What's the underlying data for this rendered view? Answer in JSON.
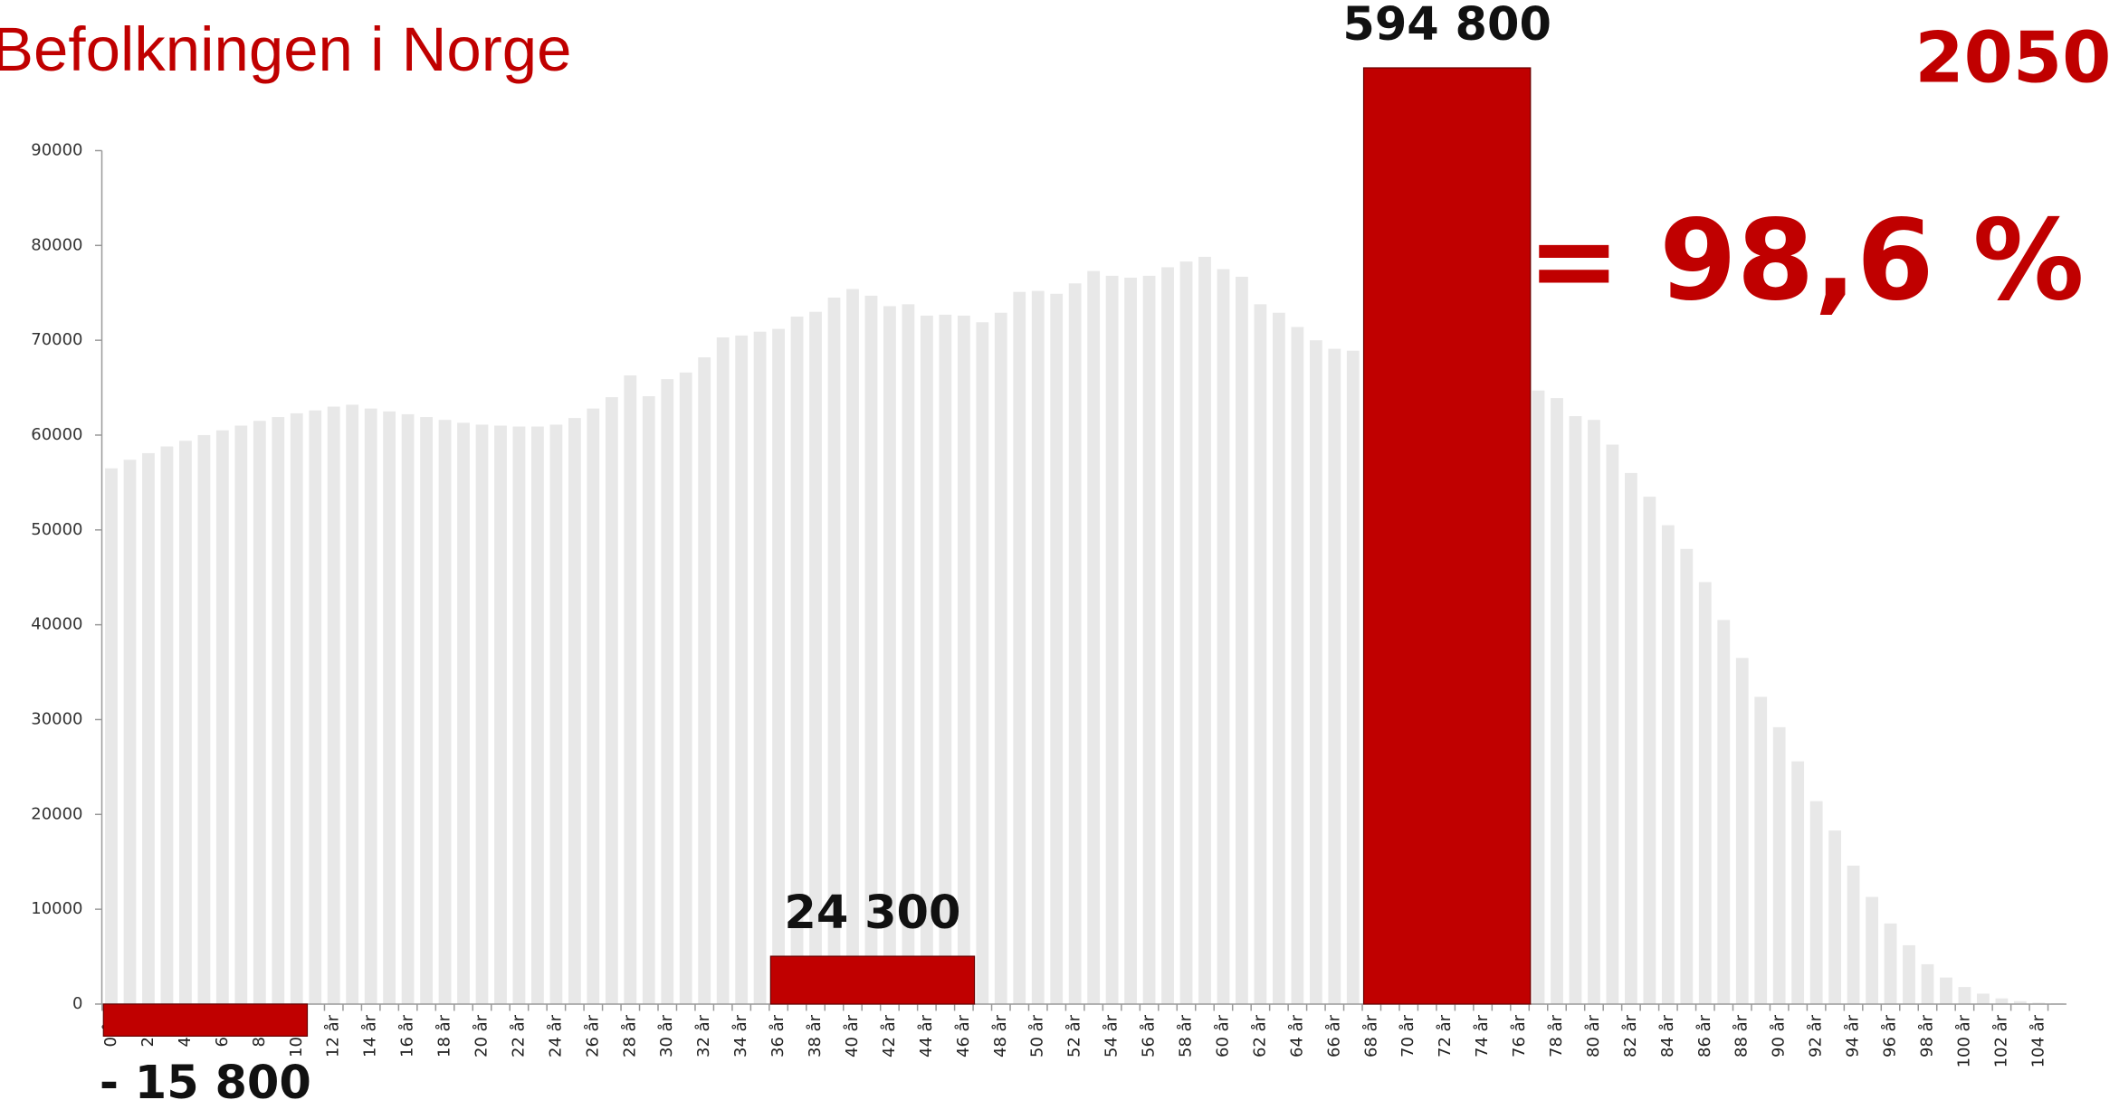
{
  "chart_data": {
    "type": "bar",
    "title": "Befolkningen i Norge",
    "year_label": "2050",
    "headline": "= 98,6 %",
    "color": "#e8e8e8",
    "categories": [
      "0 år",
      null,
      "2 år",
      null,
      "4 år",
      null,
      "6 år",
      null,
      "8 år",
      null,
      "10 år",
      null,
      "12 år",
      null,
      "14 år",
      null,
      "16 år",
      null,
      "18 år",
      null,
      "20 år",
      null,
      "22 år",
      null,
      "24 år",
      null,
      "26 år",
      null,
      "28 år",
      null,
      "30 år",
      null,
      "32 år",
      null,
      "34 år",
      null,
      "36 år",
      null,
      "38 år",
      null,
      "40 år",
      null,
      "42 år",
      null,
      "44 år",
      null,
      "46 år",
      null,
      "48 år",
      null,
      "50 år",
      null,
      "52 år",
      null,
      "54 år",
      null,
      "56 år",
      null,
      "58 år",
      null,
      "60 år",
      null,
      "62 år",
      null,
      "64 år",
      null,
      "66 år",
      null,
      "68 år",
      null,
      "70 år",
      null,
      "72 år",
      null,
      "74 år",
      null,
      "76 år",
      null,
      "78 år",
      null,
      "80 år",
      null,
      "82 år",
      null,
      "84 år",
      null,
      "86 år",
      null,
      "88 år",
      null,
      "90 år",
      null,
      "92 år",
      null,
      "94 år",
      null,
      "96 år",
      null,
      "98 år",
      null,
      "100 år",
      null,
      "102 år",
      null,
      "104 år",
      null
    ],
    "values": [
      56500,
      57400,
      58100,
      58800,
      59400,
      60000,
      60500,
      61000,
      61500,
      61900,
      62300,
      62600,
      63000,
      63200,
      62800,
      62500,
      62200,
      61900,
      61600,
      61300,
      61100,
      61000,
      60900,
      60900,
      61100,
      61800,
      62800,
      64000,
      66300,
      64100,
      65900,
      66600,
      68200,
      70300,
      70500,
      70900,
      71200,
      72500,
      73000,
      74500,
      75400,
      74700,
      73600,
      73800,
      72600,
      72700,
      72600,
      71900,
      72900,
      75100,
      75200,
      74900,
      76000,
      77300,
      76800,
      76600,
      76800,
      77700,
      78300,
      78800,
      77500,
      76700,
      73800,
      72900,
      71400,
      70000,
      69100,
      68900,
      68500,
      68000,
      67600,
      67200,
      66800,
      66400,
      66000,
      65600,
      65200,
      64700,
      63900,
      62000,
      61600,
      59000,
      56000,
      53500,
      50500,
      48000,
      44500,
      40500,
      36500,
      32400,
      29200,
      25600,
      21400,
      18300,
      14600,
      11300,
      8500,
      6200,
      4200,
      2800,
      1800,
      1100,
      600,
      300,
      150,
      80
    ],
    "ylim": [
      0,
      90000
    ],
    "yticks": [
      0,
      10000,
      20000,
      30000,
      40000,
      50000,
      60000,
      70000,
      80000,
      90000
    ],
    "highlights": {
      "color": "#c00000",
      "values": [
        -15800,
        24300,
        594800
      ],
      "value_labels": [
        "- 15 800",
        "24 300",
        "594 800"
      ],
      "from": [
        "0 år",
        "36 år",
        "68 år"
      ],
      "to": [
        "10 år",
        "46 år",
        "76 år"
      ]
    }
  }
}
